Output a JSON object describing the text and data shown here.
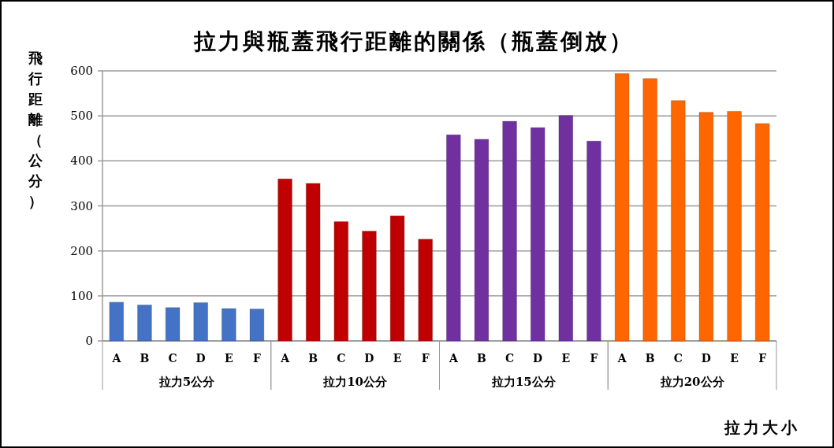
{
  "chart_data": {
    "type": "bar",
    "title": "拉力與瓶蓋飛行距離的關係（瓶蓋倒放）",
    "xlabel": "拉力大小",
    "ylabel": "飛行距離（公分）",
    "categories": [
      "A",
      "B",
      "C",
      "D",
      "E",
      "F",
      "A",
      "B",
      "C",
      "D",
      "E",
      "F",
      "A",
      "B",
      "C",
      "D",
      "E",
      "F",
      "A",
      "B",
      "C",
      "D",
      "E",
      "F"
    ],
    "series": [
      {
        "name": "拉力5公分",
        "color": "#4472c4",
        "values": [
          86,
          80,
          74,
          85,
          72,
          71,
          null,
          null,
          null,
          null,
          null,
          null,
          null,
          null,
          null,
          null,
          null,
          null,
          null,
          null,
          null,
          null,
          null,
          null
        ]
      },
      {
        "name": "拉力10公分",
        "color": "#c00000",
        "values": [
          null,
          null,
          null,
          null,
          null,
          null,
          360,
          350,
          265,
          244,
          278,
          226,
          null,
          null,
          null,
          null,
          null,
          null,
          null,
          null,
          null,
          null,
          null,
          null
        ]
      },
      {
        "name": "拉力15公分",
        "color": "#7030a0",
        "values": [
          null,
          null,
          null,
          null,
          null,
          null,
          null,
          null,
          null,
          null,
          null,
          null,
          458,
          448,
          488,
          474,
          501,
          444,
          null,
          null,
          null,
          null,
          null,
          null
        ]
      },
      {
        "name": "拉力20公分",
        "color": "#ff6600",
        "values": [
          null,
          null,
          null,
          null,
          null,
          null,
          null,
          null,
          null,
          null,
          null,
          null,
          null,
          null,
          null,
          null,
          null,
          null,
          594,
          583,
          534,
          508,
          510,
          483
        ]
      }
    ],
    "ylim": [
      0,
      600
    ],
    "yticks": [
      0,
      100,
      200,
      300,
      400,
      500,
      600
    ],
    "grid": "y"
  }
}
